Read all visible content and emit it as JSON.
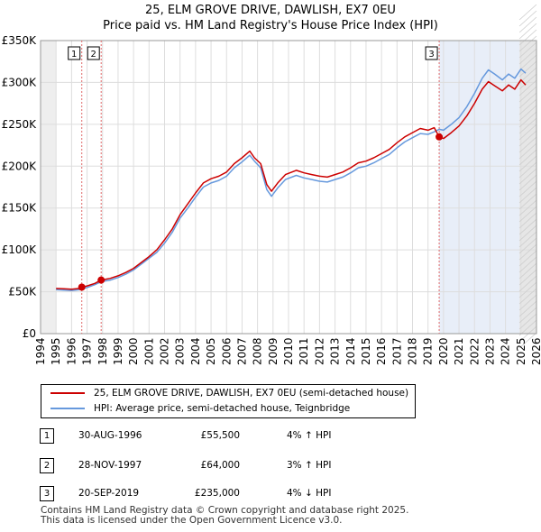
{
  "title": "25, ELM GROVE DRIVE, DAWLISH, EX7 0EU",
  "subtitle": "Price paid vs. HM Land Registry's House Price Index (HPI)",
  "chart_data": {
    "type": "line",
    "xlim": [
      1994,
      2026
    ],
    "ylim": [
      0,
      350000
    ],
    "x_ticks": [
      "1994",
      "1995",
      "1996",
      "1997",
      "1998",
      "1999",
      "2000",
      "2001",
      "2002",
      "2003",
      "2004",
      "2005",
      "2006",
      "2007",
      "2008",
      "2009",
      "2010",
      "2011",
      "2012",
      "2013",
      "2014",
      "2015",
      "2016",
      "2017",
      "2018",
      "2019",
      "2020",
      "2021",
      "2022",
      "2023",
      "2024",
      "2025",
      "2026"
    ],
    "y_ticks": [
      {
        "value": 0,
        "label": "£0"
      },
      {
        "value": 50000,
        "label": "£50K"
      },
      {
        "value": 100000,
        "label": "£100K"
      },
      {
        "value": 150000,
        "label": "£150K"
      },
      {
        "value": 200000,
        "label": "£200K"
      },
      {
        "value": 250000,
        "label": "£250K"
      },
      {
        "value": 300000,
        "label": "£300K"
      },
      {
        "value": 350000,
        "label": "£350K"
      }
    ],
    "grid": true,
    "shaded_ranges": [
      [
        1994,
        1995
      ],
      [
        2019.72,
        2024.9
      ],
      [
        2024.9,
        2026
      ]
    ],
    "series": [
      {
        "name": "25, ELM GROVE DRIVE, DAWLISH, EX7 0EU (semi-detached house)",
        "color": "#cc0000",
        "points": [
          [
            1995.0,
            54000
          ],
          [
            1995.5,
            53500
          ],
          [
            1996.0,
            53000
          ],
          [
            1996.5,
            54000
          ],
          [
            1996.66,
            55500
          ],
          [
            1997.0,
            57000
          ],
          [
            1997.5,
            60000
          ],
          [
            1997.91,
            64000
          ],
          [
            1998.5,
            66000
          ],
          [
            1999.0,
            69000
          ],
          [
            1999.5,
            73000
          ],
          [
            2000.0,
            78000
          ],
          [
            2000.5,
            85000
          ],
          [
            2001.0,
            92000
          ],
          [
            2001.5,
            100000
          ],
          [
            2002.0,
            112000
          ],
          [
            2002.5,
            125000
          ],
          [
            2003.0,
            142000
          ],
          [
            2003.5,
            155000
          ],
          [
            2004.0,
            168000
          ],
          [
            2004.5,
            180000
          ],
          [
            2005.0,
            185000
          ],
          [
            2005.5,
            188000
          ],
          [
            2006.0,
            193000
          ],
          [
            2006.5,
            203000
          ],
          [
            2007.0,
            210000
          ],
          [
            2007.5,
            218000
          ],
          [
            2007.8,
            210000
          ],
          [
            2008.2,
            203000
          ],
          [
            2008.6,
            178000
          ],
          [
            2008.9,
            170000
          ],
          [
            2009.3,
            180000
          ],
          [
            2009.8,
            190000
          ],
          [
            2010.5,
            195000
          ],
          [
            2011.0,
            192000
          ],
          [
            2011.5,
            190000
          ],
          [
            2012.0,
            188000
          ],
          [
            2012.5,
            187000
          ],
          [
            2013.0,
            190000
          ],
          [
            2013.5,
            193000
          ],
          [
            2014.0,
            198000
          ],
          [
            2014.5,
            204000
          ],
          [
            2015.0,
            206000
          ],
          [
            2015.5,
            210000
          ],
          [
            2016.0,
            215000
          ],
          [
            2016.5,
            220000
          ],
          [
            2017.0,
            228000
          ],
          [
            2017.5,
            235000
          ],
          [
            2018.0,
            240000
          ],
          [
            2018.5,
            245000
          ],
          [
            2019.0,
            243000
          ],
          [
            2019.4,
            246000
          ],
          [
            2019.72,
            235000
          ],
          [
            2020.0,
            233000
          ],
          [
            2020.5,
            240000
          ],
          [
            2021.0,
            248000
          ],
          [
            2021.5,
            260000
          ],
          [
            2022.0,
            275000
          ],
          [
            2022.5,
            292000
          ],
          [
            2022.9,
            301000
          ],
          [
            2023.3,
            296000
          ],
          [
            2023.8,
            290000
          ],
          [
            2024.2,
            297000
          ],
          [
            2024.6,
            292000
          ],
          [
            2025.0,
            303000
          ],
          [
            2025.3,
            297000
          ]
        ]
      },
      {
        "name": "HPI: Average price, semi-detached house, Teignbridge",
        "color": "#6699dd",
        "points": [
          [
            1995.0,
            52500
          ],
          [
            1995.5,
            52000
          ],
          [
            1996.0,
            51500
          ],
          [
            1996.5,
            52500
          ],
          [
            1997.0,
            55000
          ],
          [
            1997.5,
            58500
          ],
          [
            1997.91,
            62000
          ],
          [
            1998.5,
            64000
          ],
          [
            1999.0,
            67000
          ],
          [
            1999.5,
            71000
          ],
          [
            2000.0,
            76000
          ],
          [
            2000.5,
            83000
          ],
          [
            2001.0,
            90000
          ],
          [
            2001.5,
            97000
          ],
          [
            2002.0,
            108000
          ],
          [
            2002.5,
            121000
          ],
          [
            2003.0,
            138000
          ],
          [
            2003.5,
            150000
          ],
          [
            2004.0,
            163000
          ],
          [
            2004.5,
            175000
          ],
          [
            2005.0,
            180000
          ],
          [
            2005.5,
            183000
          ],
          [
            2006.0,
            188000
          ],
          [
            2006.5,
            198000
          ],
          [
            2007.0,
            205000
          ],
          [
            2007.5,
            213000
          ],
          [
            2007.8,
            206000
          ],
          [
            2008.2,
            198000
          ],
          [
            2008.6,
            172000
          ],
          [
            2008.9,
            164000
          ],
          [
            2009.3,
            174000
          ],
          [
            2009.8,
            184000
          ],
          [
            2010.5,
            189000
          ],
          [
            2011.0,
            186000
          ],
          [
            2011.5,
            184000
          ],
          [
            2012.0,
            182000
          ],
          [
            2012.5,
            181000
          ],
          [
            2013.0,
            184000
          ],
          [
            2013.5,
            187000
          ],
          [
            2014.0,
            192000
          ],
          [
            2014.5,
            198000
          ],
          [
            2015.0,
            200000
          ],
          [
            2015.5,
            204000
          ],
          [
            2016.0,
            209000
          ],
          [
            2016.5,
            214000
          ],
          [
            2017.0,
            222000
          ],
          [
            2017.5,
            229000
          ],
          [
            2018.0,
            234000
          ],
          [
            2018.5,
            239000
          ],
          [
            2019.0,
            238000
          ],
          [
            2019.4,
            241000
          ],
          [
            2019.72,
            244000
          ],
          [
            2020.0,
            243000
          ],
          [
            2020.5,
            250000
          ],
          [
            2021.0,
            258000
          ],
          [
            2021.5,
            271000
          ],
          [
            2022.0,
            287000
          ],
          [
            2022.5,
            305000
          ],
          [
            2022.9,
            315000
          ],
          [
            2023.3,
            310000
          ],
          [
            2023.8,
            303000
          ],
          [
            2024.2,
            310000
          ],
          [
            2024.6,
            305000
          ],
          [
            2025.0,
            316000
          ],
          [
            2025.3,
            311000
          ]
        ]
      }
    ],
    "sales": [
      {
        "label": "1",
        "x": 1996.66,
        "y": 55500
      },
      {
        "label": "2",
        "x": 1997.91,
        "y": 64000
      },
      {
        "label": "3",
        "x": 2019.72,
        "y": 235000
      }
    ]
  },
  "legend": [
    {
      "label": "25, ELM GROVE DRIVE, DAWLISH, EX7 0EU (semi-detached house)",
      "color": "#cc0000"
    },
    {
      "label": "HPI: Average price, semi-detached house, Teignbridge",
      "color": "#6699dd"
    }
  ],
  "transactions": [
    {
      "num": "1",
      "date": "30-AUG-1996",
      "price": "£55,500",
      "hpi": "4% ↑ HPI"
    },
    {
      "num": "2",
      "date": "28-NOV-1997",
      "price": "£64,000",
      "hpi": "3% ↑ HPI"
    },
    {
      "num": "3",
      "date": "20-SEP-2019",
      "price": "£235,000",
      "hpi": "4% ↓ HPI"
    }
  ],
  "footer": {
    "line1": "Contains HM Land Registry data © Crown copyright and database right 2025.",
    "line2": "This data is licensed under the Open Government Licence v3.0."
  }
}
